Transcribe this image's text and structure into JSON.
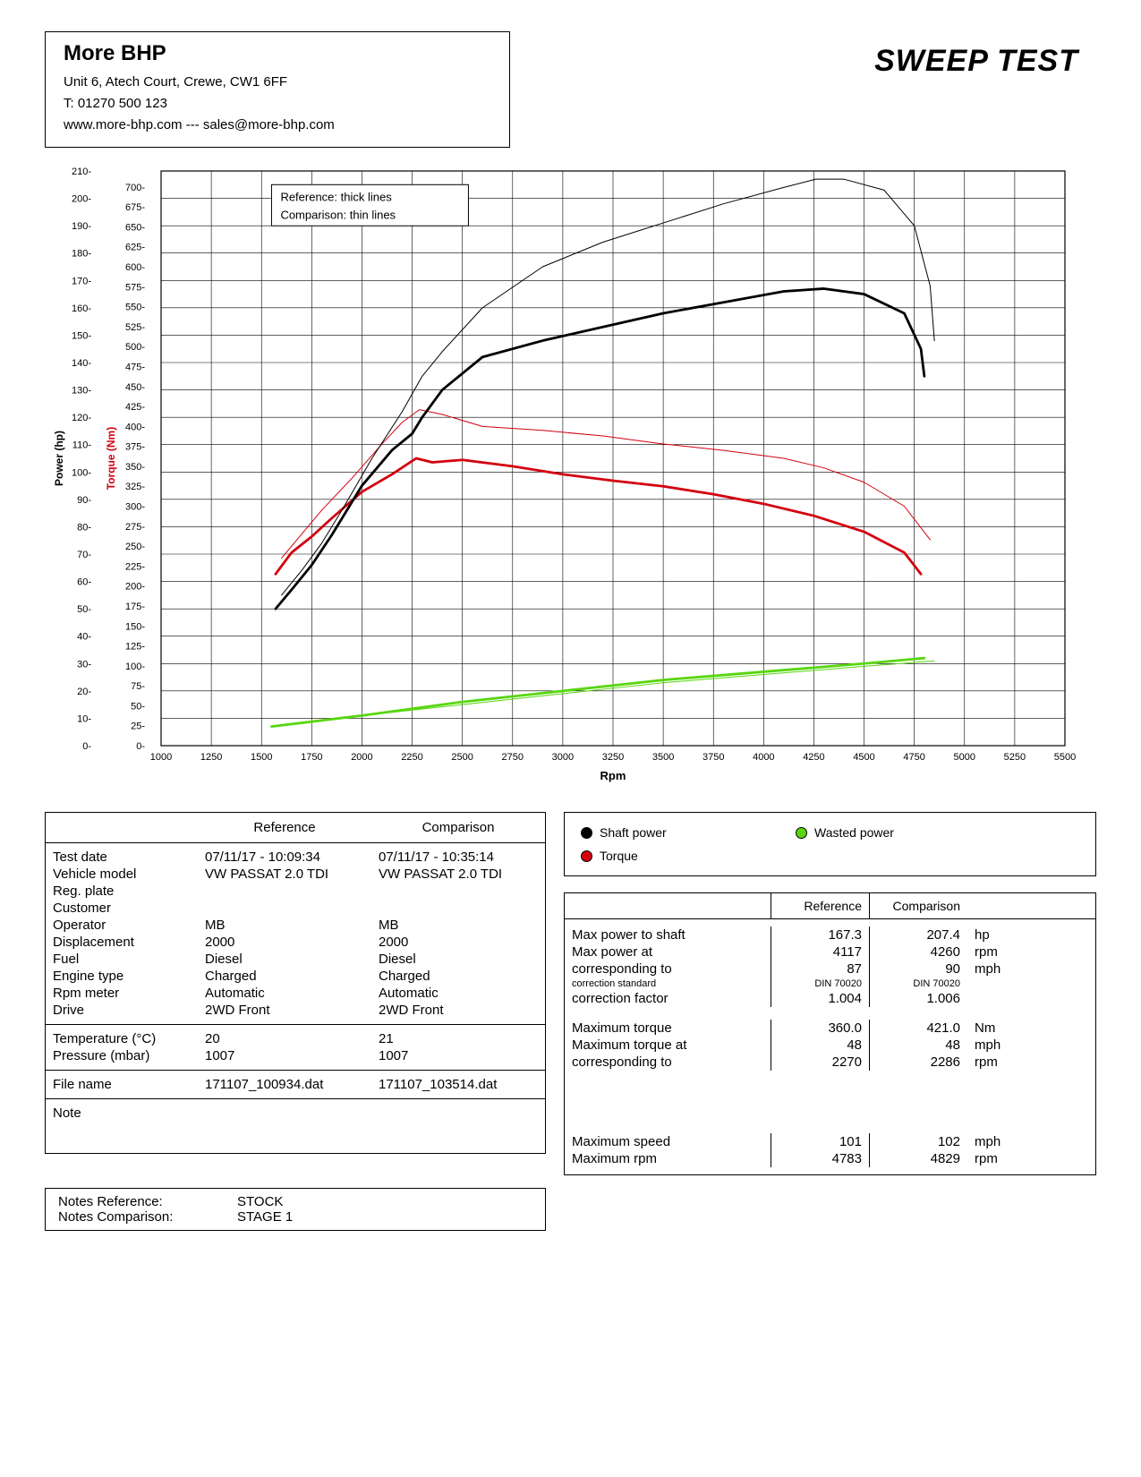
{
  "company": {
    "name": "More BHP",
    "address": "Unit 6, Atech Court, Crewe, CW1 6FF",
    "phone": "T: 01270 500 123",
    "web": "www.more-bhp.com --- sales@more-bhp.com"
  },
  "title": "SWEEP TEST",
  "chart": {
    "type": "line",
    "x_label": "Rpm",
    "y_left_label": "Power (hp)",
    "y_right_label": "Torque (Nm)",
    "x_min": 1000,
    "x_max": 5500,
    "x_step": 250,
    "power_min": 0,
    "power_max": 210,
    "power_step": 10,
    "torque_min": 0,
    "torque_max": 720,
    "torque_step": 25,
    "colors": {
      "shaft_power": "#000000",
      "torque": "#d4000f",
      "wasted_power": "#58d60f",
      "grid": "#000000",
      "bg": "#ffffff"
    },
    "line_widths": {
      "reference": 2.8,
      "comparison": 1.0
    },
    "legend_chart": [
      "Reference: thick lines",
      "Comparison: thin lines"
    ],
    "series": {
      "power_ref": {
        "rpm": [
          1570,
          1650,
          1750,
          1850,
          2000,
          2150,
          2250,
          2300,
          2400,
          2600,
          2900,
          3200,
          3500,
          3800,
          4100,
          4300,
          4500,
          4700,
          4783,
          4800
        ],
        "hp": [
          50,
          57,
          66,
          77,
          95,
          108,
          114,
          120,
          130,
          142,
          148,
          153,
          158,
          162,
          166,
          167,
          165,
          158,
          145,
          135
        ]
      },
      "power_cmp": {
        "rpm": [
          1600,
          1700,
          1800,
          1900,
          2050,
          2200,
          2300,
          2400,
          2600,
          2900,
          3200,
          3500,
          3800,
          4100,
          4260,
          4400,
          4600,
          4750,
          4829,
          4850
        ],
        "hp": [
          55,
          64,
          74,
          86,
          105,
          122,
          135,
          144,
          160,
          175,
          184,
          191,
          198,
          204,
          207,
          207,
          203,
          190,
          168,
          148
        ]
      },
      "torque_ref": {
        "rpm": [
          1570,
          1650,
          1750,
          1850,
          2000,
          2150,
          2270,
          2350,
          2500,
          2750,
          3000,
          3250,
          3500,
          3750,
          4000,
          4250,
          4500,
          4700,
          4783
        ],
        "nm": [
          215,
          242,
          262,
          285,
          318,
          340,
          360,
          355,
          358,
          350,
          340,
          332,
          325,
          315,
          303,
          288,
          268,
          242,
          215
        ]
      },
      "torque_cmp": {
        "rpm": [
          1600,
          1700,
          1800,
          1950,
          2100,
          2200,
          2286,
          2400,
          2600,
          2900,
          3200,
          3500,
          3800,
          4100,
          4300,
          4500,
          4700,
          4829
        ],
        "nm": [
          235,
          265,
          295,
          335,
          378,
          405,
          421,
          415,
          400,
          395,
          388,
          378,
          370,
          360,
          348,
          330,
          300,
          258
        ]
      },
      "wasted_ref": {
        "rpm": [
          1550,
          2000,
          2500,
          3000,
          3500,
          4000,
          4500,
          4800
        ],
        "hp": [
          7,
          11,
          16,
          20,
          24,
          27,
          30,
          32
        ]
      },
      "wasted_cmp": {
        "rpm": [
          1550,
          2000,
          2500,
          3000,
          3500,
          4000,
          4500,
          4850
        ],
        "hp": [
          7,
          11,
          15,
          19,
          23,
          26,
          29,
          31
        ]
      }
    }
  },
  "legend": {
    "shaft_power": "Shaft power",
    "wasted_power": "Wasted power",
    "torque": "Torque"
  },
  "left_table": {
    "head_ref": "Reference",
    "head_cmp": "Comparison",
    "rows1": [
      {
        "label": "Test date",
        "ref": "07/11/17 - 10:09:34",
        "cmp": "07/11/17 - 10:35:14"
      },
      {
        "label": "Vehicle model",
        "ref": "VW PASSAT 2.0 TDI",
        "cmp": "VW PASSAT 2.0 TDI"
      },
      {
        "label": "Reg. plate",
        "ref": "",
        "cmp": ""
      },
      {
        "label": "Customer",
        "ref": "",
        "cmp": ""
      },
      {
        "label": "Operator",
        "ref": "MB",
        "cmp": "MB"
      },
      {
        "label": "Displacement",
        "ref": "2000",
        "cmp": "2000"
      },
      {
        "label": "Fuel",
        "ref": "Diesel",
        "cmp": "Diesel"
      },
      {
        "label": "Engine type",
        "ref": "Charged",
        "cmp": "Charged"
      },
      {
        "label": "Rpm meter",
        "ref": "Automatic",
        "cmp": "Automatic"
      },
      {
        "label": "Drive",
        "ref": "2WD Front",
        "cmp": "2WD Front"
      }
    ],
    "rows2": [
      {
        "label": "Temperature (°C)",
        "ref": "20",
        "cmp": "21"
      },
      {
        "label": "Pressure (mbar)",
        "ref": "1007",
        "cmp": "1007"
      }
    ],
    "rows3": [
      {
        "label": "File name",
        "ref": "171107_100934.dat",
        "cmp": "171107_103514.dat"
      }
    ],
    "rows4": [
      {
        "label": "Note",
        "ref": "",
        "cmp": ""
      }
    ]
  },
  "results": {
    "head_ref": "Reference",
    "head_cmp": "Comparison",
    "rows": [
      {
        "label": "Max power to shaft",
        "ref": "167.3",
        "cmp": "207.4",
        "unit": "hp"
      },
      {
        "label": "Max power at",
        "ref": "4117",
        "cmp": "4260",
        "unit": "rpm"
      },
      {
        "label": "corresponding to",
        "ref": "87",
        "cmp": "90",
        "unit": "mph"
      },
      {
        "label": "correction standard",
        "ref": "DIN 70020",
        "cmp": "DIN 70020",
        "unit": "",
        "small": true
      },
      {
        "label": "correction factor",
        "ref": "1.004",
        "cmp": "1.006",
        "unit": ""
      }
    ],
    "rows2": [
      {
        "label": "Maximum torque",
        "ref": "360.0",
        "cmp": "421.0",
        "unit": "Nm"
      },
      {
        "label": "Maximum torque at",
        "ref": "48",
        "cmp": "48",
        "unit": "mph"
      },
      {
        "label": "corresponding to",
        "ref": "2270",
        "cmp": "2286",
        "unit": "rpm"
      }
    ],
    "rows3": [
      {
        "label": "Maximum speed",
        "ref": "101",
        "cmp": "102",
        "unit": "mph"
      },
      {
        "label": "Maximum rpm",
        "ref": "4783",
        "cmp": "4829",
        "unit": "rpm"
      }
    ]
  },
  "notes": {
    "ref_label": "Notes Reference:",
    "ref_val": "STOCK",
    "cmp_label": "Notes Comparison:",
    "cmp_val": "STAGE 1"
  }
}
